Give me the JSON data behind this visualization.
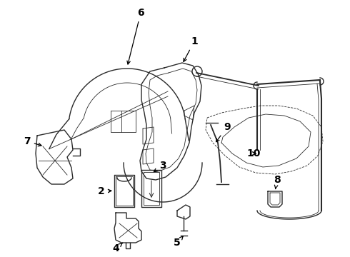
{
  "bg_color": "#ffffff",
  "line_color": "#2a2a2a",
  "label_color": "#000000",
  "lw_main": 1.0,
  "lw_thin": 0.6,
  "figsize": [
    4.9,
    3.6
  ],
  "dpi": 100,
  "xlim": [
    0,
    490
  ],
  "ylim": [
    0,
    360
  ]
}
